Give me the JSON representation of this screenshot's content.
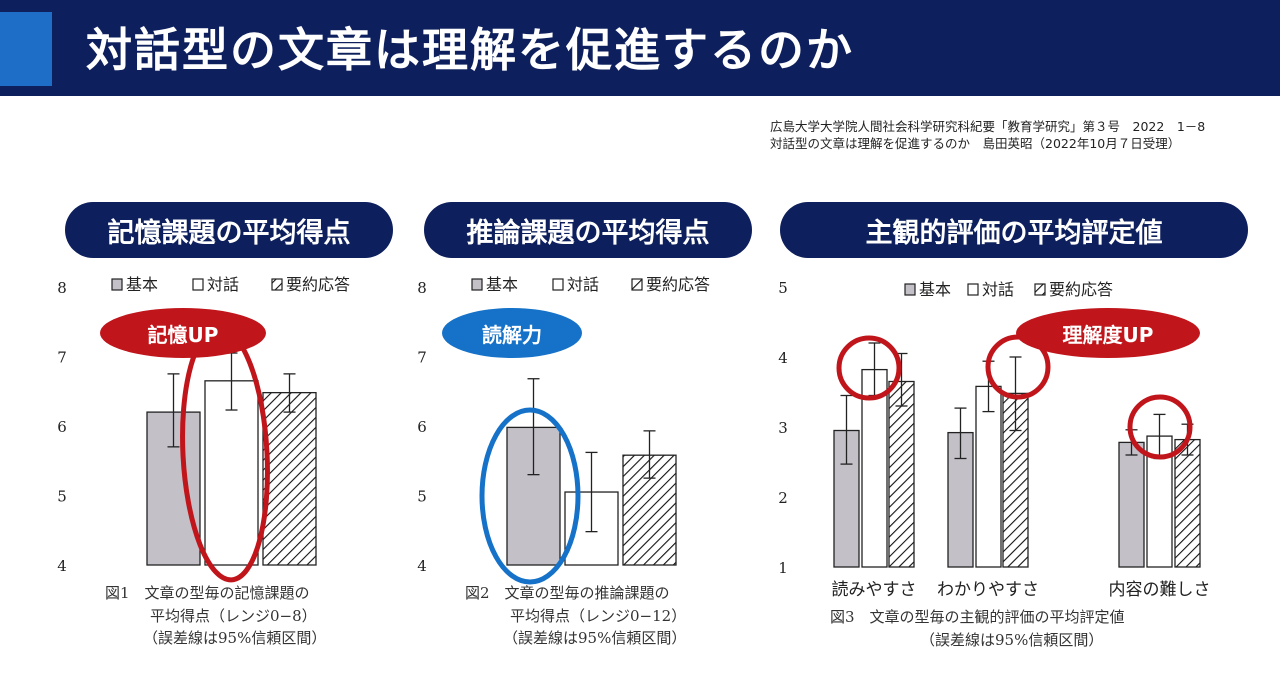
{
  "slide": {
    "title": "対話型の文章は理解を促進するのか",
    "citation_line1": "広島大学大学院人間社会科学研究科紀要「教育学研究」第３号　2022　1－8",
    "citation_line2": "対話型の文章は理解を促進するのか　島田英昭（2022年10月７日受理）",
    "accent_color": "#1e6ec8",
    "header_color": "#0d1f5c",
    "highlight_red": "#c0151b",
    "highlight_blue": "#1572c8"
  },
  "section_titles": [
    "記憶課題の平均得点",
    "推論課題の平均得点",
    "主観的評価の平均評定値"
  ],
  "chart_data": [
    {
      "type": "bar",
      "categories": [
        ""
      ],
      "series": [
        {
          "name": "基本",
          "values": [
            6.2
          ],
          "ci": [
            [
              5.7,
              6.75
            ]
          ],
          "fill": "gray"
        },
        {
          "name": "対話",
          "values": [
            6.65
          ],
          "ci": [
            [
              6.23,
              7.05
            ]
          ],
          "fill": "white"
        },
        {
          "name": "要約応答",
          "values": [
            6.48
          ],
          "ci": [
            [
              6.2,
              6.75
            ]
          ],
          "fill": "hatch"
        }
      ],
      "ylim": [
        4,
        8
      ],
      "yticks": [
        "4",
        "5",
        "6",
        "7",
        "8"
      ],
      "legend_position": "top",
      "caption": [
        "図1　文章の型毎の記憶課題の",
        "平均得点（レンジ0−8）",
        "（誤差線は95%信頼区間）"
      ],
      "callout": {
        "text": "記憶UP",
        "color": "#c0151b"
      }
    },
    {
      "type": "bar",
      "categories": [
        ""
      ],
      "series": [
        {
          "name": "基本",
          "values": [
            5.98
          ],
          "ci": [
            [
              5.3,
              6.68
            ]
          ],
          "fill": "gray"
        },
        {
          "name": "対話",
          "values": [
            5.05
          ],
          "ci": [
            [
              4.48,
              5.62
            ]
          ],
          "fill": "white"
        },
        {
          "name": "要約応答",
          "values": [
            5.58
          ],
          "ci": [
            [
              5.25,
              5.93
            ]
          ],
          "fill": "hatch"
        }
      ],
      "ylim": [
        4,
        8
      ],
      "yticks": [
        "4",
        "5",
        "6",
        "7",
        "8"
      ],
      "legend_position": "top",
      "caption": [
        "図2　文章の型毎の推論課題の",
        "平均得点（レンジ0−12）",
        "（誤差線は95%信頼区間）"
      ],
      "callout": {
        "text": "読解力",
        "color": "#1572c8"
      }
    },
    {
      "type": "bar",
      "categories": [
        "読みやすさ",
        "わかりやすさ",
        "内容の難しさ"
      ],
      "series": [
        {
          "name": "基本",
          "values": [
            2.95,
            2.92,
            2.78
          ],
          "ci": [
            [
              2.47,
              3.45
            ],
            [
              2.55,
              3.27
            ],
            [
              2.6,
              2.96
            ]
          ],
          "fill": "gray"
        },
        {
          "name": "対話",
          "values": [
            3.82,
            3.58,
            2.87
          ],
          "ci": [
            [
              3.45,
              4.2
            ],
            [
              3.22,
              3.94
            ],
            [
              2.55,
              3.18
            ]
          ],
          "fill": "white"
        },
        {
          "name": "要約応答",
          "values": [
            3.65,
            3.48,
            2.82
          ],
          "ci": [
            [
              3.3,
              4.05
            ],
            [
              2.95,
              4.0
            ],
            [
              2.6,
              3.04
            ]
          ],
          "fill": "hatch"
        }
      ],
      "ylim": [
        1,
        5
      ],
      "yticks": [
        "1",
        "2",
        "3",
        "4",
        "5"
      ],
      "legend_position": "top",
      "caption": [
        "図3　文章の型毎の主観的評価の平均評定値",
        "（誤差線は95%信頼区間）"
      ],
      "callout": {
        "text": "理解度UP",
        "color": "#c0151b"
      }
    }
  ]
}
